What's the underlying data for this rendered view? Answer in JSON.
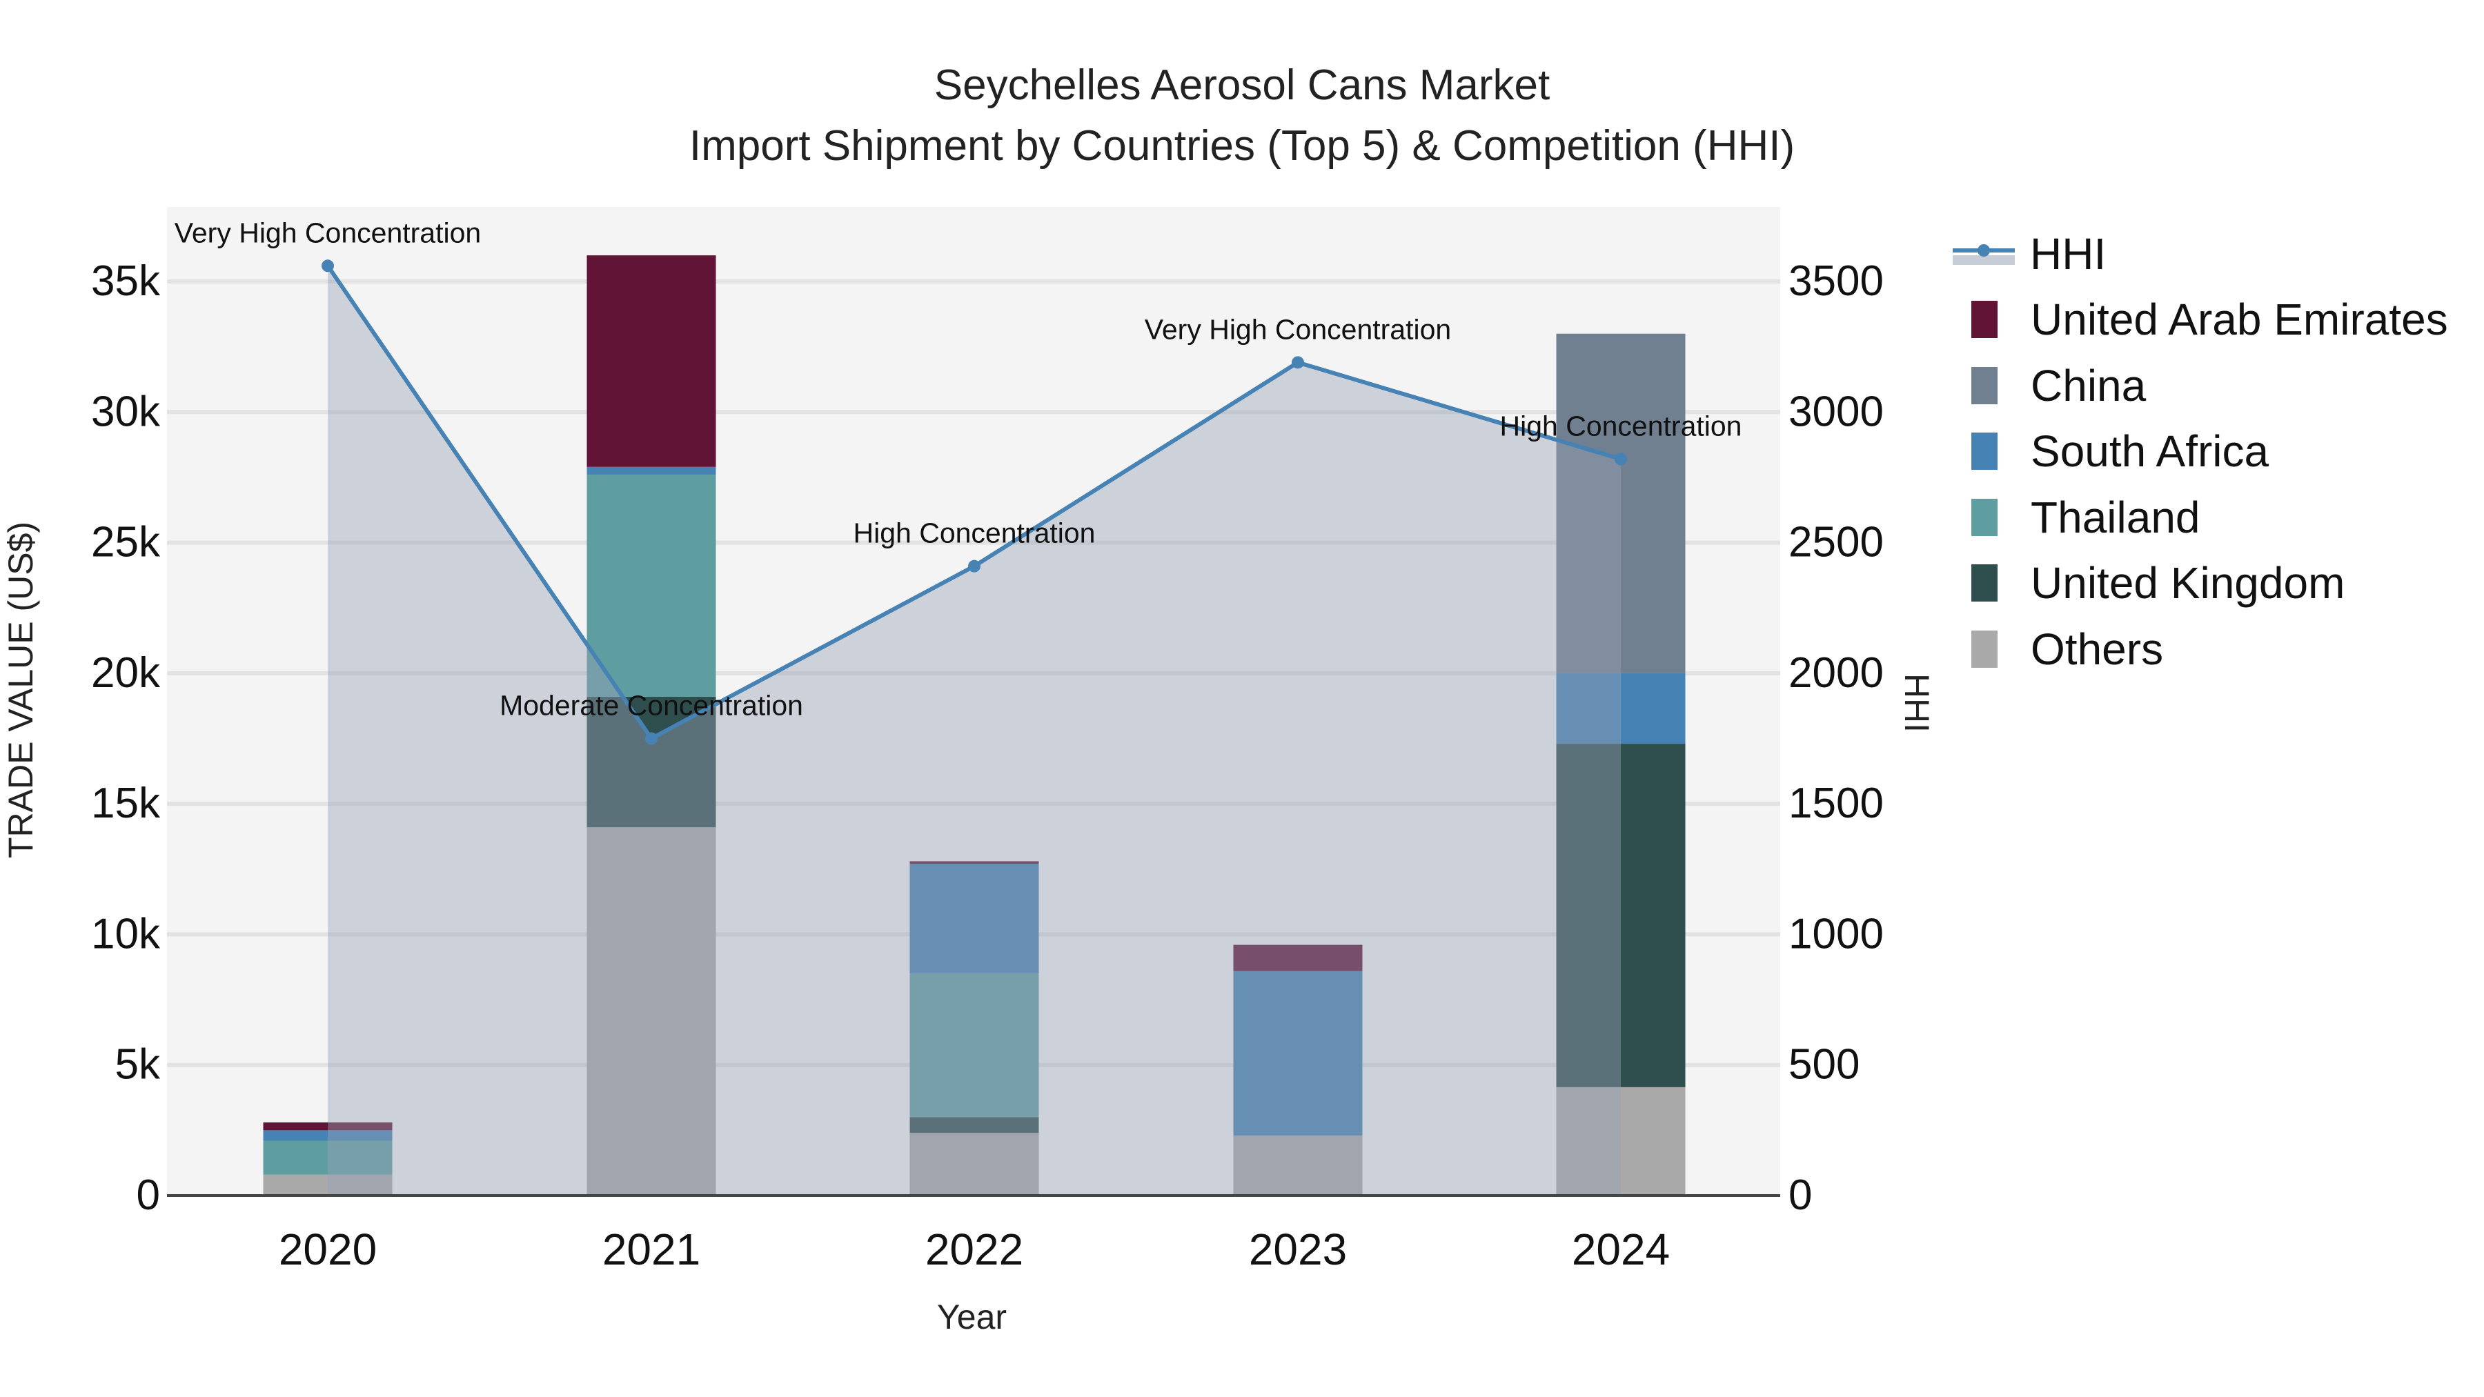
{
  "title": {
    "line1": "Seychelles Aerosol Cans Market",
    "line2": "Import Shipment by Countries (Top 5) & Competition (HHI)"
  },
  "axes": {
    "x_title": "Year",
    "y_left_title": "TRADE VALUE (US$)",
    "y_right_title": "HHI"
  },
  "legend": {
    "items": [
      {
        "label": "HHI",
        "type": "line",
        "color": "#4682B4"
      },
      {
        "label": "United Arab Emirates",
        "type": "bar",
        "color": "#621436"
      },
      {
        "label": "China",
        "type": "bar",
        "color": "#708090"
      },
      {
        "label": "South Africa",
        "type": "bar",
        "color": "#4682B4"
      },
      {
        "label": "Thailand",
        "type": "bar",
        "color": "#5F9EA0"
      },
      {
        "label": "United Kingdom",
        "type": "bar",
        "color": "#2F4F4F"
      },
      {
        "label": "Others",
        "type": "bar",
        "color": "#A9A9A9"
      }
    ]
  },
  "colors": {
    "plot_bg": "#F4F4F4",
    "grid": "#E2E2E2",
    "hhi_line": "#4682B4",
    "hhi_fill": "rgba(176,186,200,0.55)"
  },
  "chart_data": {
    "type": "bar",
    "stacked": true,
    "title": "Seychelles Aerosol Cans Market - Import Shipment by Countries (Top 5) & Competition (HHI)",
    "xlabel": "Year",
    "ylabel": "TRADE VALUE (US$)",
    "y2label": "HHI",
    "categories": [
      "2020",
      "2021",
      "2022",
      "2023",
      "2024"
    ],
    "ylim": [
      0,
      38000
    ],
    "y2lim": [
      0,
      3800
    ],
    "yticks": [
      "0",
      "5k",
      "10k",
      "15k",
      "20k",
      "25k",
      "30k",
      "35k"
    ],
    "y2ticks": [
      "0",
      "500",
      "1000",
      "1500",
      "2000",
      "2500",
      "3000",
      "3500"
    ],
    "grid": true,
    "legend_position": "right",
    "series": [
      {
        "name": "Others",
        "color": "#A9A9A9",
        "values": [
          800,
          14100,
          2400,
          2300,
          4150
        ]
      },
      {
        "name": "United Kingdom",
        "color": "#2F4F4F",
        "values": [
          0,
          5000,
          600,
          0,
          13150
        ]
      },
      {
        "name": "Thailand",
        "color": "#5F9EA0",
        "values": [
          1300,
          8500,
          5500,
          0,
          0
        ]
      },
      {
        "name": "South Africa",
        "color": "#4682B4",
        "values": [
          400,
          300,
          4200,
          6300,
          2700
        ]
      },
      {
        "name": "China",
        "color": "#708090",
        "values": [
          0,
          0,
          0,
          0,
          13000
        ]
      },
      {
        "name": "United Arab Emirates",
        "color": "#621436",
        "values": [
          300,
          8100,
          100,
          1000,
          0
        ]
      }
    ],
    "hhi": {
      "name": "HHI",
      "type": "line+area",
      "axis": "right",
      "values": [
        3560,
        1750,
        2410,
        3190,
        2820
      ],
      "annotations": [
        "Very High Concentration",
        "Moderate Concentration",
        "High Concentration",
        "Very High Concentration",
        "High Concentration"
      ]
    }
  }
}
